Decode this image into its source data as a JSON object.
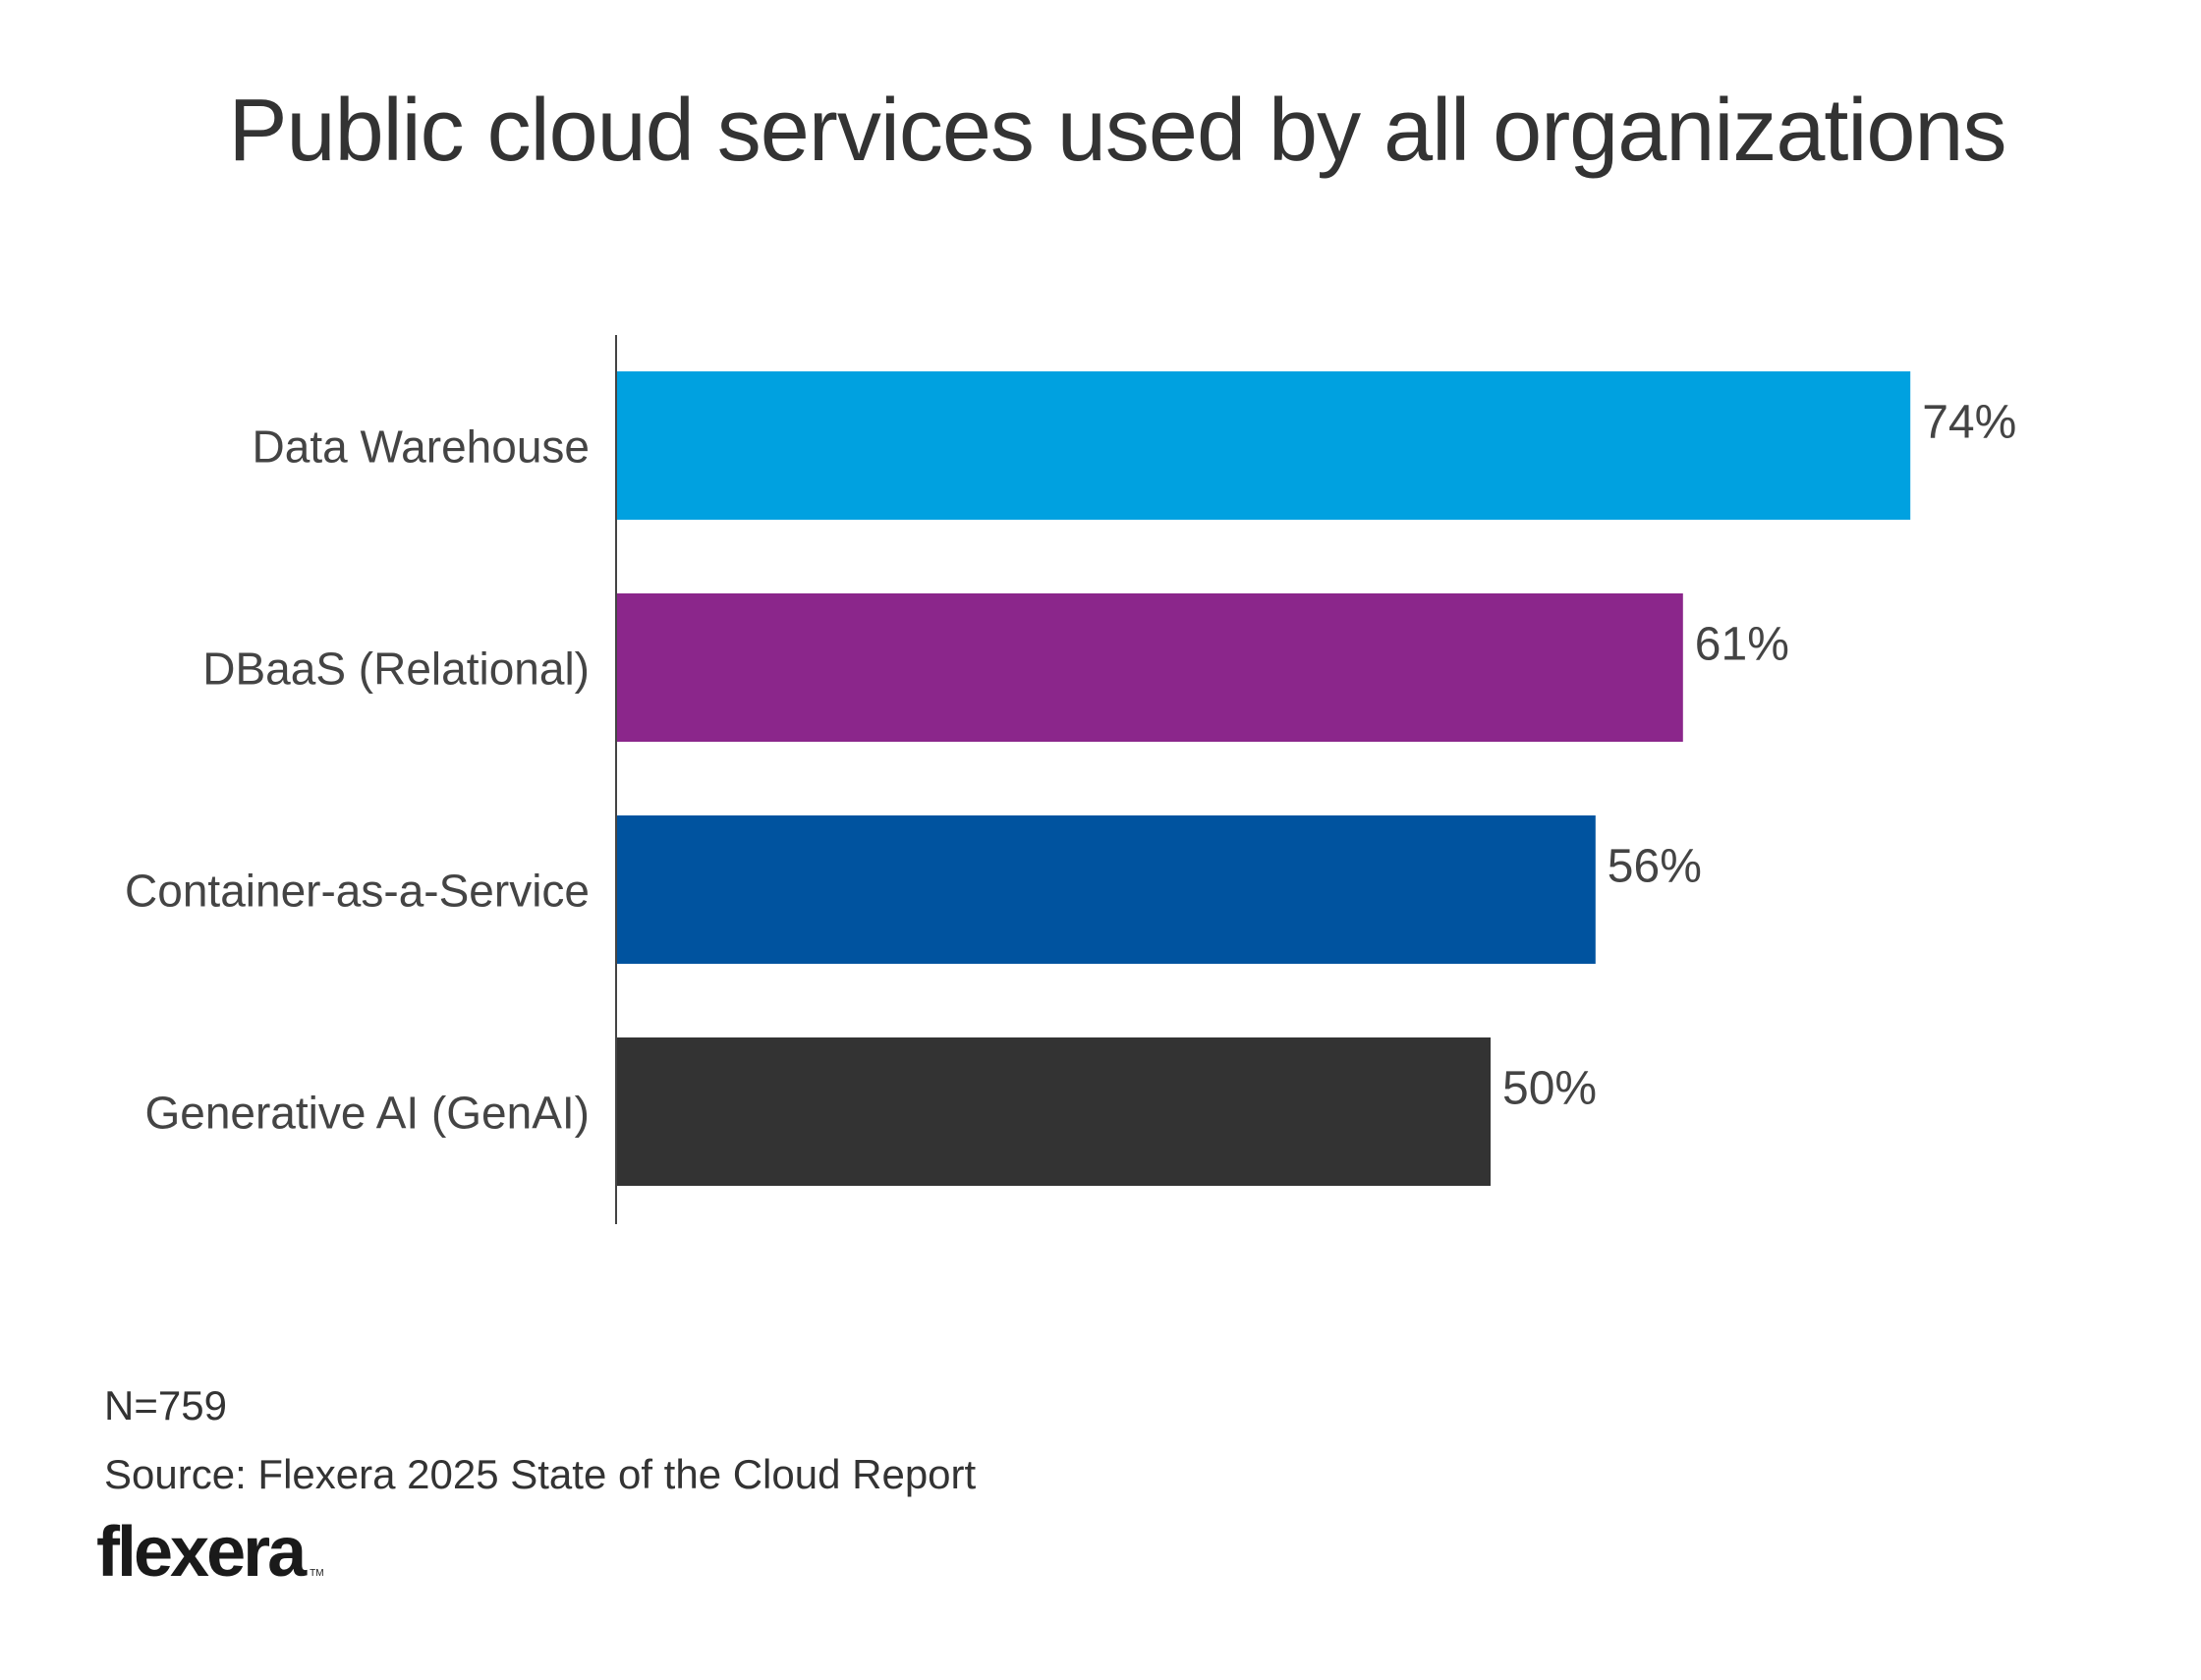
{
  "chart_data": {
    "type": "bar",
    "orientation": "horizontal",
    "title": "Public cloud services used by all organizations",
    "categories": [
      "Data Warehouse",
      "DBaaS (Relational)",
      "Container-as-a-Service",
      "Generative AI (GenAI)"
    ],
    "values": [
      74,
      61,
      56,
      50
    ],
    "value_labels": [
      "74%",
      "61%",
      "56%",
      "50%"
    ],
    "colors": [
      "#00A1E0",
      "#8B268B",
      "#00539F",
      "#333333"
    ],
    "unit": "%",
    "xlabel": "",
    "ylabel": "",
    "xlim": [
      0,
      100
    ],
    "grid": false,
    "legend": "none"
  },
  "footer": {
    "sample_size": "N=759",
    "source": "Source: Flexera 2025 State of the Cloud Report"
  },
  "logo": {
    "text": "flexera",
    "trademark": "TM"
  }
}
